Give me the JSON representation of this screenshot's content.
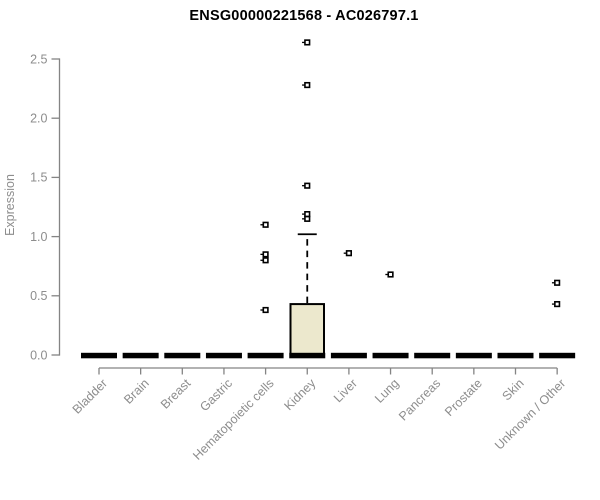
{
  "title": "ENSG00000221568 - AC026797.1",
  "chart_data": {
    "type": "boxplot",
    "title": "ENSG00000221568 - AC026797.1",
    "xlabel": "",
    "ylabel": "Expression",
    "ylim": [
      0,
      2.5
    ],
    "yticks": [
      "0.0",
      "0.5",
      "1.0",
      "1.5",
      "2.0",
      "2.5"
    ],
    "ytick_values": [
      0,
      0.5,
      1.0,
      1.5,
      2.0,
      2.5
    ],
    "grid": false,
    "legend": "none",
    "categories": [
      "Bladder",
      "Brain",
      "Breast",
      "Gastric",
      "Hematopoietic cells",
      "Kidney",
      "Liver",
      "Lung",
      "Pancreas",
      "Prostate",
      "Skin",
      "Unknown / Other"
    ],
    "series": [
      {
        "category": "Bladder",
        "median": 0,
        "q1": 0,
        "q3": 0,
        "whisker_low": 0,
        "whisker_high": 0,
        "outliers": []
      },
      {
        "category": "Brain",
        "median": 0,
        "q1": 0,
        "q3": 0,
        "whisker_low": 0,
        "whisker_high": 0,
        "outliers": []
      },
      {
        "category": "Breast",
        "median": 0,
        "q1": 0,
        "q3": 0,
        "whisker_low": 0,
        "whisker_high": 0,
        "outliers": []
      },
      {
        "category": "Gastric",
        "median": 0,
        "q1": 0,
        "q3": 0,
        "whisker_low": 0,
        "whisker_high": 0,
        "outliers": []
      },
      {
        "category": "Hematopoietic cells",
        "median": 0,
        "q1": 0,
        "q3": 0,
        "whisker_low": 0,
        "whisker_high": 0,
        "outliers": [
          0.38,
          0.8,
          0.85,
          1.1
        ]
      },
      {
        "category": "Kidney",
        "median": 0,
        "q1": 0,
        "q3": 0.43,
        "whisker_low": 0,
        "whisker_high": 1.02,
        "outliers": [
          1.15,
          1.19,
          1.43,
          2.28,
          2.64
        ]
      },
      {
        "category": "Liver",
        "median": 0,
        "q1": 0,
        "q3": 0,
        "whisker_low": 0,
        "whisker_high": 0,
        "outliers": [
          0.86
        ]
      },
      {
        "category": "Lung",
        "median": 0,
        "q1": 0,
        "q3": 0,
        "whisker_low": 0,
        "whisker_high": 0,
        "outliers": [
          0.68
        ]
      },
      {
        "category": "Pancreas",
        "median": 0,
        "q1": 0,
        "q3": 0,
        "whisker_low": 0,
        "whisker_high": 0,
        "outliers": []
      },
      {
        "category": "Prostate",
        "median": 0,
        "q1": 0,
        "q3": 0,
        "whisker_low": 0,
        "whisker_high": 0,
        "outliers": []
      },
      {
        "category": "Skin",
        "median": 0,
        "q1": 0,
        "q3": 0,
        "whisker_low": 0,
        "whisker_high": 0,
        "outliers": []
      },
      {
        "category": "Unknown / Other",
        "median": 0,
        "q1": 0,
        "q3": 0,
        "whisker_low": 0,
        "whisker_high": 0,
        "outliers": [
          0.43,
          0.61
        ]
      }
    ],
    "colors": {
      "background": "#ffffff",
      "box_fill": "#ece8cd",
      "box_stroke": "#000000",
      "median_bar": "#000000",
      "outlier_marker": "#000000",
      "axis": "#848484",
      "tick_label": "#8d8d8d",
      "title": "#000000"
    }
  }
}
